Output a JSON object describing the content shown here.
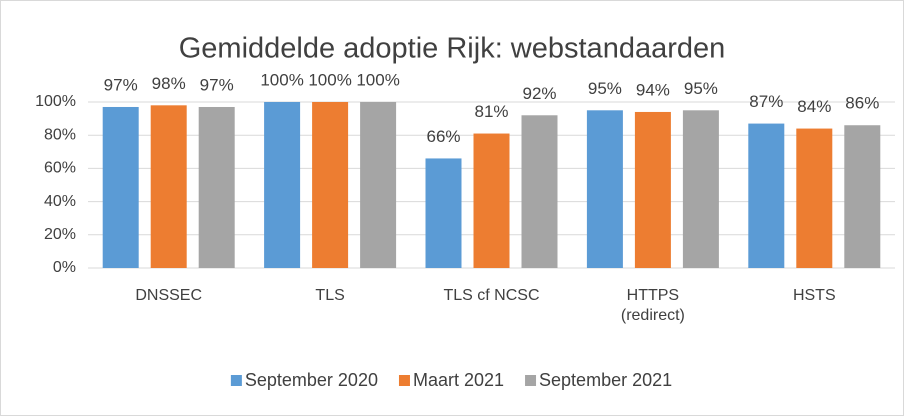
{
  "chart_data": {
    "type": "bar",
    "title": "Gemiddelde adoptie Rijk: webstandaarden",
    "categories": [
      "DNSSEC",
      "TLS",
      "TLS cf NCSC",
      "HTTPS\n(redirect)",
      "HSTS"
    ],
    "series": [
      {
        "name": "September 2020",
        "color": "#5b9bd5",
        "values": [
          97,
          100,
          66,
          95,
          87
        ],
        "value_labels": [
          "97%",
          "100%",
          "66%",
          "95%",
          "87%"
        ]
      },
      {
        "name": "Maart 2021",
        "color": "#ed7d31",
        "values": [
          98,
          100,
          81,
          94,
          84
        ],
        "value_labels": [
          "98%",
          "100%",
          "81%",
          "94%",
          "84%"
        ]
      },
      {
        "name": "September 2021",
        "color": "#a5a5a5",
        "values": [
          97,
          100,
          92,
          95,
          86
        ],
        "value_labels": [
          "97%",
          "100%",
          "92%",
          "95%",
          "86%"
        ]
      }
    ],
    "ylim": [
      0,
      100
    ],
    "yticks": [
      {
        "value": 0,
        "label": "0%"
      },
      {
        "value": 20,
        "label": "20%"
      },
      {
        "value": 40,
        "label": "40%"
      },
      {
        "value": 60,
        "label": "60%"
      },
      {
        "value": 80,
        "label": "80%"
      },
      {
        "value": 100,
        "label": "100%"
      }
    ],
    "grid": true,
    "legend": "bottom"
  }
}
